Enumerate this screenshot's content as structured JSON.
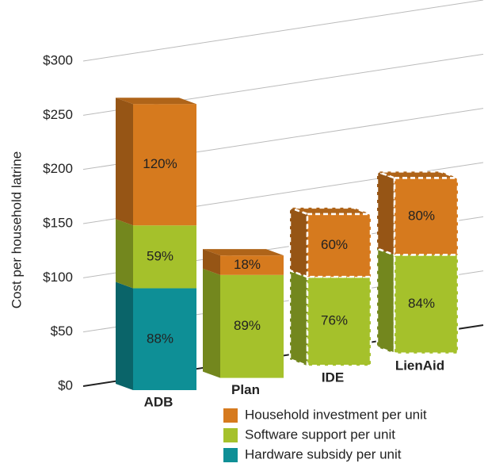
{
  "chart_data": {
    "type": "bar3d_stacked",
    "y_label": "Cost per household latrine",
    "categories": [
      "ADB",
      "Plan",
      "IDE",
      "LienAid"
    ],
    "series": [
      {
        "name": "Hardware subsidy per unit",
        "color": "#0e8f96",
        "values": [
          94,
          0,
          0,
          0
        ],
        "segment_labels": [
          "88%",
          null,
          null,
          null
        ]
      },
      {
        "name": "Software support per unit",
        "color": "#a5c12b",
        "values": [
          58,
          95,
          82,
          91
        ],
        "segment_labels": [
          "59%",
          "89%",
          "76%",
          "84%"
        ]
      },
      {
        "name": "Household investment per unit",
        "color": "#d67a1e",
        "values": [
          112,
          18,
          58,
          71
        ],
        "segment_labels": [
          "120%",
          "18%",
          "60%",
          "80%"
        ]
      }
    ],
    "dashed_outline": [
      false,
      false,
      true,
      true
    ],
    "ylim": [
      0,
      300
    ],
    "yticks": [
      {
        "value": 0,
        "label": "$0"
      },
      {
        "value": 50,
        "label": "$50"
      },
      {
        "value": 100,
        "label": "$100"
      },
      {
        "value": 150,
        "label": "$150"
      },
      {
        "value": 200,
        "label": "$200"
      },
      {
        "value": 250,
        "label": "$250"
      },
      {
        "value": 300,
        "label": "$300"
      }
    ],
    "grid": true
  }
}
